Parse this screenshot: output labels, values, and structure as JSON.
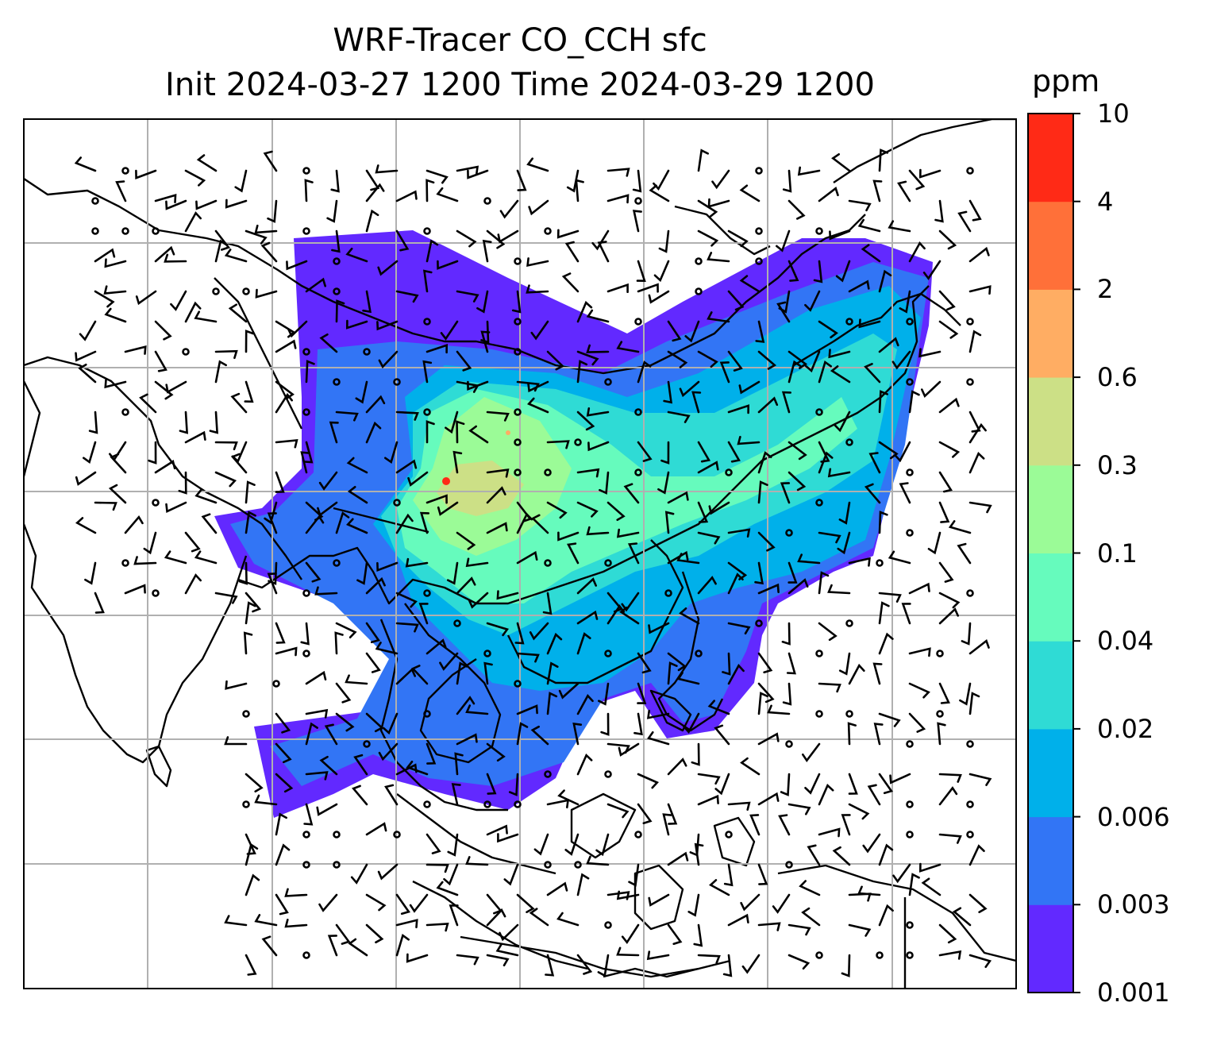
{
  "figure": {
    "title_line1": "WRF-Tracer CO_CCH sfc",
    "title_line2": "Init 2024-03-27 1200 Time 2024-03-29 1200"
  },
  "map": {
    "background": "#ffffff",
    "coastline_color": "#000000",
    "gridline_color": "#b0b0b0",
    "grid": true,
    "wind_barbs": "black"
  },
  "colorbar": {
    "unit": "ppm",
    "levels": [
      "0.001",
      "0.003",
      "0.006",
      "0.02",
      "0.04",
      "0.1",
      "0.3",
      "0.6",
      "2",
      "4",
      "10"
    ],
    "colors": [
      "#6229ff",
      "#3275f5",
      "#00b0ea",
      "#2fdbd5",
      "#66fbbd",
      "#9bfb97",
      "#cce086",
      "#ffad63",
      "#ff7039",
      "#ff2a16"
    ]
  }
}
